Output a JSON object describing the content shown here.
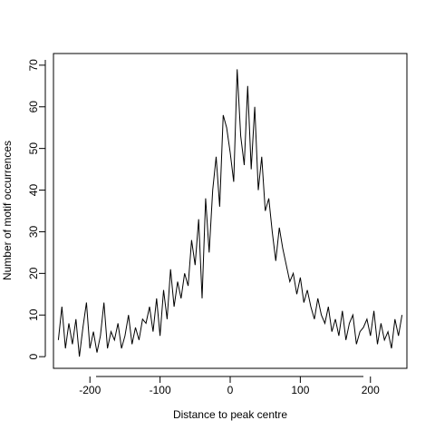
{
  "chart_data": {
    "type": "line",
    "title": "",
    "xlabel": "Distance to peak centre",
    "ylabel": "Number of motif occurrences",
    "xlim": [
      -252,
      252
    ],
    "ylim": [
      -2.8,
      72.8
    ],
    "grid": false,
    "xticks": [
      -200,
      -100,
      0,
      100,
      200
    ],
    "yticks": [
      0,
      10,
      20,
      30,
      40,
      50,
      60,
      70
    ],
    "xtick_labels": [
      "-200",
      "-100",
      "0",
      "100",
      "200"
    ],
    "ytick_labels": [
      "0",
      "10",
      "20",
      "30",
      "40",
      "50",
      "60",
      "70"
    ],
    "series": [
      {
        "x": [
          -245,
          -240,
          -235,
          -230,
          -225,
          -220,
          -215,
          -210,
          -205,
          -200,
          -195,
          -190,
          -185,
          -180,
          -175,
          -170,
          -165,
          -160,
          -155,
          -150,
          -145,
          -140,
          -135,
          -130,
          -125,
          -120,
          -115,
          -110,
          -105,
          -100,
          -95,
          -90,
          -85,
          -80,
          -75,
          -70,
          -65,
          -60,
          -55,
          -50,
          -45,
          -40,
          -35,
          -30,
          -25,
          -20,
          -15,
          -10,
          -5,
          0,
          5,
          10,
          15,
          20,
          25,
          30,
          35,
          40,
          45,
          50,
          55,
          60,
          65,
          70,
          75,
          80,
          85,
          90,
          95,
          100,
          105,
          110,
          115,
          120,
          125,
          130,
          135,
          140,
          145,
          150,
          155,
          160,
          165,
          170,
          175,
          180,
          185,
          190,
          195,
          200,
          205,
          210,
          215,
          220,
          225,
          230,
          235,
          240,
          245
        ],
        "values": [
          4,
          12,
          2,
          8,
          3,
          9,
          0,
          7,
          13,
          2,
          6,
          1,
          5,
          13,
          2,
          6,
          4,
          8,
          2,
          5,
          10,
          3,
          7,
          4,
          9,
          8,
          12,
          6,
          14,
          5,
          16,
          9,
          21,
          12,
          18,
          14,
          20,
          17,
          28,
          22,
          33,
          14,
          38,
          25,
          40,
          48,
          36,
          58,
          55,
          49,
          42,
          69,
          53,
          46,
          65,
          45,
          60,
          40,
          48,
          35,
          38,
          30,
          23,
          31,
          26,
          22,
          18,
          20,
          15,
          19,
          13,
          16,
          12,
          9,
          14,
          10,
          8,
          12,
          6,
          9,
          5,
          11,
          4,
          8,
          10,
          3,
          6,
          7,
          9,
          5,
          11,
          3,
          8,
          4,
          6,
          2,
          9,
          5,
          10
        ]
      }
    ]
  }
}
